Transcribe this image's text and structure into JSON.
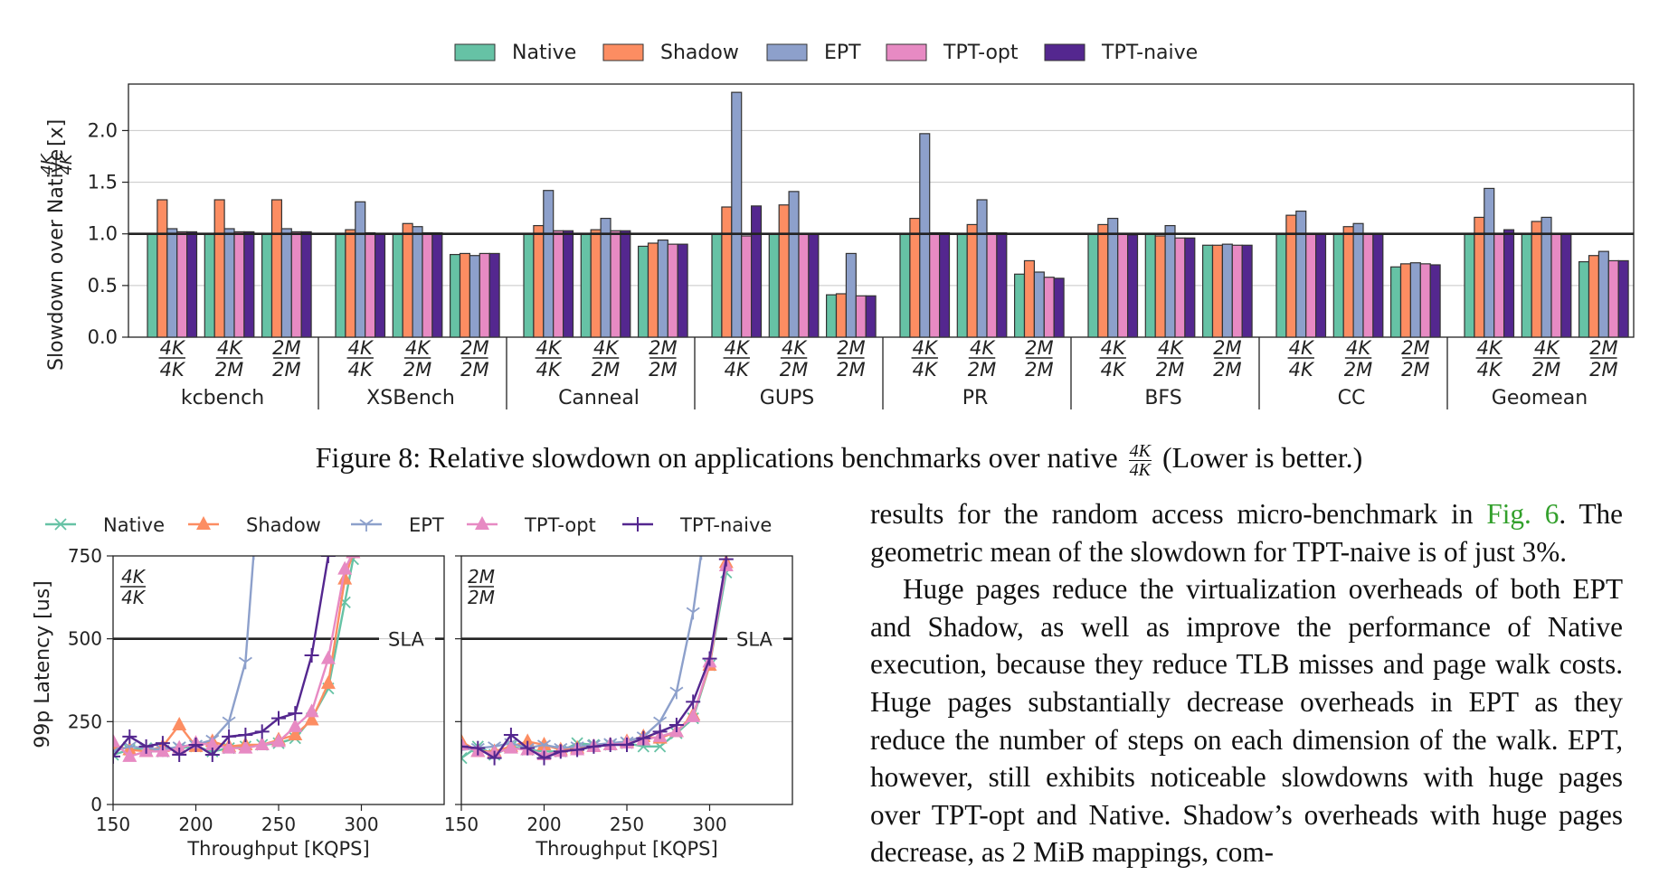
{
  "figure8": {
    "caption_prefix": "Figure 8: Relative slowdown on applications benchmarks over native",
    "caption_frac_num": "4K",
    "caption_frac_den": "4K",
    "caption_suffix": "(Lower is better.)"
  },
  "chart_data": [
    {
      "type": "bar",
      "ylabel_prefix": "Slowdown over Native",
      "ylabel_frac_num": "4K",
      "ylabel_frac_den": "4K",
      "ylabel_unit": "[x]",
      "ylim": [
        0,
        2.45
      ],
      "yticks": [
        "0.0",
        "0.5",
        "1.0",
        "1.5",
        "2.0"
      ],
      "reference_line": 1.0,
      "legend": [
        "Native",
        "Shadow",
        "EPT",
        "TPT-opt",
        "TPT-naive"
      ],
      "colors": [
        "#66c2a5",
        "#fc8d62",
        "#8da0cb",
        "#e78ac3",
        "#54278f"
      ],
      "config_labels": [
        {
          "num": "4K",
          "den": "4K"
        },
        {
          "num": "4K",
          "den": "2M"
        },
        {
          "num": "2M",
          "den": "2M"
        }
      ],
      "groups": [
        {
          "name": "kcbench",
          "configs": [
            [
              1.0,
              1.33,
              1.05,
              1.02,
              1.02
            ],
            [
              1.0,
              1.33,
              1.05,
              1.02,
              1.02
            ],
            [
              1.0,
              1.33,
              1.05,
              1.02,
              1.02
            ]
          ]
        },
        {
          "name": "XSBench",
          "configs": [
            [
              1.0,
              1.04,
              1.31,
              1.01,
              1.0
            ],
            [
              1.0,
              1.1,
              1.07,
              1.01,
              1.01
            ],
            [
              0.8,
              0.81,
              0.79,
              0.81,
              0.81
            ]
          ]
        },
        {
          "name": "Canneal",
          "configs": [
            [
              1.0,
              1.08,
              1.42,
              1.03,
              1.03
            ],
            [
              1.0,
              1.04,
              1.15,
              1.03,
              1.03
            ],
            [
              0.88,
              0.91,
              0.94,
              0.9,
              0.9
            ]
          ]
        },
        {
          "name": "GUPS",
          "configs": [
            [
              1.0,
              1.26,
              2.37,
              0.98,
              1.27
            ],
            [
              1.0,
              1.28,
              1.41,
              1.0,
              1.0
            ],
            [
              0.41,
              0.42,
              0.81,
              0.4,
              0.4
            ]
          ]
        },
        {
          "name": "PR",
          "configs": [
            [
              1.0,
              1.15,
              1.97,
              1.01,
              1.01
            ],
            [
              1.0,
              1.09,
              1.33,
              1.01,
              1.01
            ],
            [
              0.61,
              0.74,
              0.63,
              0.58,
              0.57
            ]
          ]
        },
        {
          "name": "BFS",
          "configs": [
            [
              1.0,
              1.09,
              1.15,
              1.0,
              0.99
            ],
            [
              1.0,
              0.98,
              1.08,
              0.96,
              0.96
            ],
            [
              0.89,
              0.89,
              0.9,
              0.89,
              0.89
            ]
          ]
        },
        {
          "name": "CC",
          "configs": [
            [
              1.0,
              1.18,
              1.22,
              1.0,
              1.0
            ],
            [
              1.0,
              1.07,
              1.1,
              1.0,
              1.0
            ],
            [
              0.68,
              0.71,
              0.72,
              0.71,
              0.7
            ]
          ]
        },
        {
          "name": "Geomean",
          "configs": [
            [
              1.0,
              1.16,
              1.44,
              1.0,
              1.04
            ],
            [
              1.0,
              1.12,
              1.16,
              1.0,
              1.0
            ],
            [
              0.73,
              0.79,
              0.83,
              0.74,
              0.74
            ]
          ]
        }
      ]
    },
    {
      "type": "line",
      "ylabel": "99p Latency [us]",
      "xlabel": "Throughput [KQPS]",
      "xlim": [
        150,
        350
      ],
      "ylim": [
        0,
        750
      ],
      "xticks": [
        "150",
        "200",
        "250",
        "300"
      ],
      "yticks": [
        "0",
        "250",
        "500",
        "750"
      ],
      "sla_value": 500,
      "sla_label": "SLA",
      "legend": [
        "Native",
        "Shadow",
        "EPT",
        "TPT-opt",
        "TPT-naive"
      ],
      "colors": [
        "#66c2a5",
        "#fc8d62",
        "#8da0cb",
        "#e78ac3",
        "#54278f"
      ],
      "markers": [
        "x",
        "triangle",
        "tri",
        "triangle",
        "plus"
      ],
      "panels": [
        {
          "label_num": "4K",
          "label_den": "4K",
          "series": [
            {
              "name": "Native",
              "x": [
                150,
                160,
                170,
                180,
                190,
                200,
                210,
                220,
                230,
                240,
                250,
                260,
                270,
                280,
                290,
                295
              ],
              "y": [
                150,
                165,
                170,
                160,
                170,
                175,
                160,
                170,
                175,
                180,
                185,
                200,
                260,
                350,
                610,
                740
              ]
            },
            {
              "name": "Shadow",
              "x": [
                150,
                160,
                170,
                180,
                190,
                200,
                210,
                220,
                230,
                240,
                250,
                260,
                270,
                280,
                290,
                295
              ],
              "y": [
                180,
                165,
                160,
                175,
                240,
                175,
                190,
                175,
                180,
                180,
                195,
                210,
                255,
                365,
                680,
                760
              ]
            },
            {
              "name": "EPT",
              "x": [
                150,
                160,
                170,
                180,
                190,
                200,
                210,
                220,
                230,
                235
              ],
              "y": [
                160,
                175,
                170,
                165,
                175,
                180,
                195,
                250,
                430,
                760
              ]
            },
            {
              "name": "TPT-opt",
              "x": [
                150,
                160,
                170,
                180,
                190,
                200,
                210,
                220,
                230,
                240,
                250,
                260,
                270,
                280,
                290,
                295
              ],
              "y": [
                190,
                145,
                160,
                160,
                170,
                185,
                180,
                170,
                170,
                180,
                190,
                235,
                280,
                440,
                710,
                760
              ]
            },
            {
              "name": "TPT-naive",
              "x": [
                150,
                160,
                170,
                180,
                190,
                200,
                210,
                220,
                230,
                240,
                250,
                260,
                270,
                280,
                285
              ],
              "y": [
                145,
                205,
                175,
                185,
                150,
                180,
                150,
                205,
                210,
                220,
                260,
                275,
                450,
                750,
                780
              ]
            }
          ]
        },
        {
          "label_num": "2M",
          "label_den": "2M",
          "series": [
            {
              "name": "Native",
              "x": [
                150,
                160,
                170,
                180,
                190,
                200,
                210,
                220,
                230,
                240,
                250,
                260,
                270,
                280,
                290,
                300,
                310
              ],
              "y": [
                140,
                175,
                150,
                175,
                165,
                160,
                160,
                185,
                180,
                180,
                185,
                175,
                175,
                215,
                260,
                420,
                700
              ]
            },
            {
              "name": "Shadow",
              "x": [
                150,
                160,
                170,
                180,
                190,
                200,
                210,
                220,
                230,
                240,
                250,
                260,
                270,
                280,
                290,
                300,
                310
              ],
              "y": [
                190,
                160,
                160,
                175,
                190,
                180,
                165,
                170,
                175,
                180,
                190,
                205,
                200,
                220,
                270,
                420,
                730
              ]
            },
            {
              "name": "EPT",
              "x": [
                150,
                160,
                170,
                180,
                190,
                200,
                210,
                220,
                230,
                240,
                250,
                260,
                270,
                280,
                290,
                295
              ],
              "y": [
                165,
                170,
                175,
                185,
                170,
                180,
                170,
                175,
                180,
                185,
                190,
                205,
                250,
                340,
                580,
                760
              ]
            },
            {
              "name": "TPT-opt",
              "x": [
                150,
                160,
                170,
                180,
                190,
                200,
                210,
                220,
                230,
                240,
                250,
                260,
                270,
                280,
                290,
                300,
                310
              ],
              "y": [
                180,
                160,
                155,
                170,
                165,
                150,
                160,
                165,
                175,
                180,
                185,
                195,
                205,
                220,
                265,
                430,
                720
              ]
            },
            {
              "name": "TPT-naive",
              "x": [
                150,
                160,
                170,
                180,
                190,
                200,
                210,
                220,
                230,
                240,
                250,
                260,
                270,
                280,
                290,
                300,
                310
              ],
              "y": [
                175,
                170,
                140,
                210,
                170,
                140,
                160,
                165,
                175,
                180,
                180,
                200,
                220,
                240,
                310,
                440,
                740
              ]
            }
          ]
        }
      ]
    }
  ],
  "body_text": {
    "p1_line1_a": "results for the random access micro-benchmark in ",
    "p1_figref": "Fig. 6",
    "p1_line1_b": ". The",
    "p1_line2": "geometric mean of the slowdown for TPT-naive is of just 3%.",
    "p2": "Huge pages reduce the virtualization overheads of both EPT and Shadow, as well as improve the performance of Native execution, because they reduce TLB misses and page walk costs. Huge pages substantially decrease overheads in EPT as they reduce the number of steps on each dimension of the walk. EPT, however, still exhibits noticeable slowdowns with huge pages over TPT-opt and Native. Shadow’s overheads with huge pages decrease, as 2 MiB mappings, com-"
  }
}
